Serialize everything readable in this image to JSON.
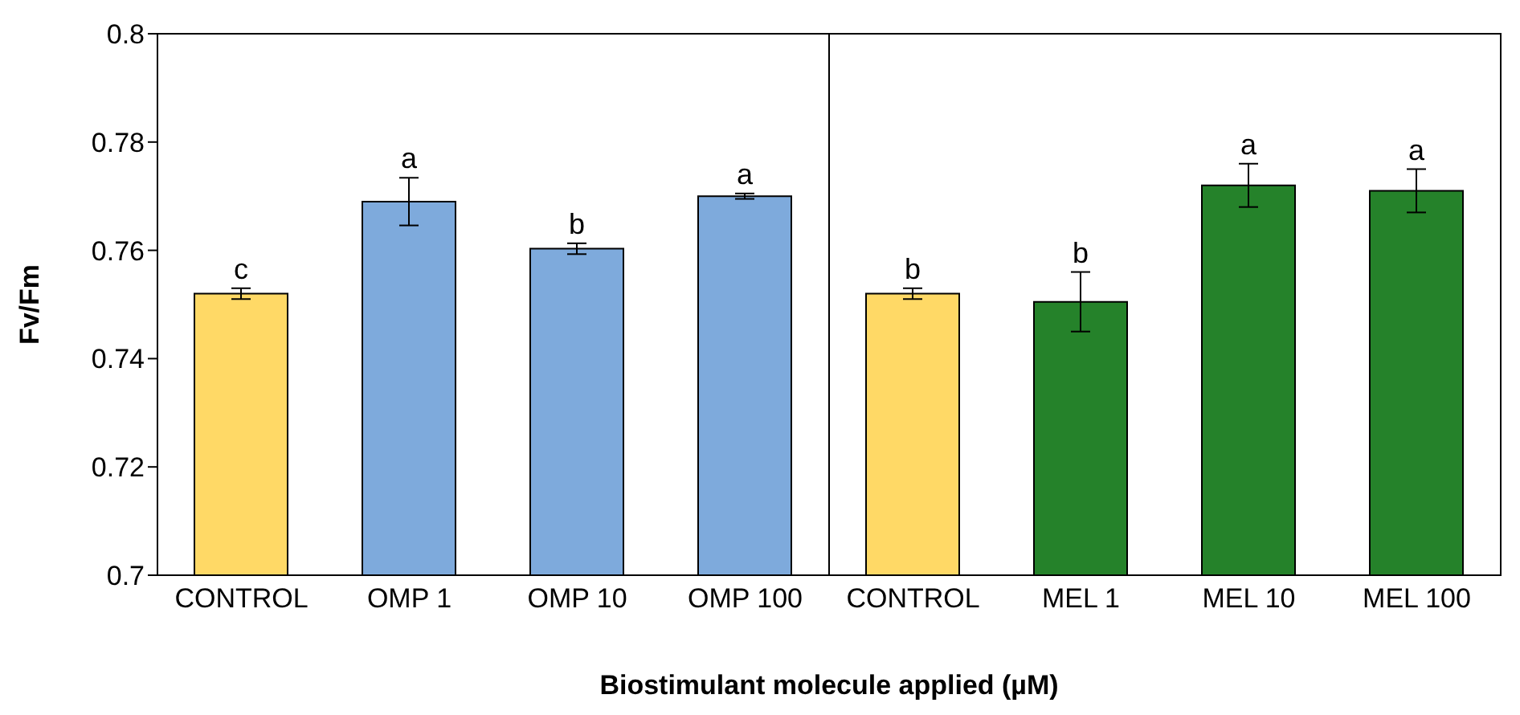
{
  "chart_data": {
    "type": "bar",
    "xlabel": "Biostimulant molecule applied (µM)",
    "ylabel": "Fv/Fm",
    "categories": [
      "CONTROL",
      "OMP 1",
      "OMP 10",
      "OMP 100",
      "CONTROL",
      "MEL 1",
      "MEL 10",
      "MEL 100"
    ],
    "values": [
      0.752,
      0.769,
      0.7603,
      0.77,
      0.752,
      0.7505,
      0.772,
      0.771
    ],
    "errors": [
      0.001,
      0.0044,
      0.001,
      0.0005,
      0.001,
      0.0055,
      0.004,
      0.004
    ],
    "colors": [
      "#ffd966",
      "#7eaadc",
      "#7eaadc",
      "#7eaadc",
      "#ffd966",
      "#25822a",
      "#25822a",
      "#25822a"
    ],
    "value_labels": [
      "c",
      "a",
      "b",
      "a",
      "b",
      "b",
      "a",
      "a"
    ],
    "ylim": [
      0.7,
      0.8
    ],
    "yticks": [
      0.7,
      0.72,
      0.74,
      0.76,
      0.78,
      0.8
    ]
  }
}
